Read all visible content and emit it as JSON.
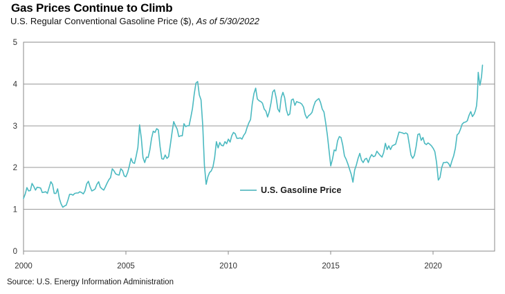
{
  "header": {
    "title": "Gas Prices Continue to Climb",
    "subtitle_main": "U.S. Regular Conventional Gasoline Price ($), ",
    "subtitle_asof": "As of 5/30/2022"
  },
  "legend": {
    "label": "U.S. Gasoline Price"
  },
  "footer": {
    "source": "Source: U.S. Energy Information Administration"
  },
  "colors": {
    "line": "#4ab9c0",
    "grid": "#999999",
    "border": "#8a8a8a",
    "axis_text": "#333333"
  },
  "chart_data": {
    "type": "line",
    "title": "Gas Prices Continue to Climb",
    "subtitle": "U.S. Regular Conventional Gasoline Price ($), As of 5/30/2022",
    "xlabel": "",
    "ylabel": "",
    "xlim": [
      2000,
      2023
    ],
    "ylim": [
      0,
      5
    ],
    "yticks": [
      0,
      1,
      2,
      3,
      4,
      5
    ],
    "xticks": [
      2000,
      2005,
      2010,
      2015,
      2020
    ],
    "grid": "horizontal",
    "legend_position": "inside-center",
    "source": "U.S. Energy Information Administration",
    "series": [
      {
        "name": "U.S. Gasoline Price",
        "start_year": 2000,
        "monthly_values": [
          [
            1.26,
            1.37,
            1.52,
            1.44,
            1.45,
            1.62,
            1.55,
            1.46,
            1.53,
            1.52,
            1.51,
            1.4
          ],
          [
            1.41,
            1.42,
            1.38,
            1.52,
            1.66,
            1.6,
            1.38,
            1.38,
            1.49,
            1.26,
            1.13,
            1.05
          ],
          [
            1.08,
            1.1,
            1.22,
            1.36,
            1.36,
            1.34,
            1.38,
            1.39,
            1.39,
            1.42,
            1.4,
            1.37
          ],
          [
            1.44,
            1.61,
            1.67,
            1.54,
            1.44,
            1.46,
            1.49,
            1.6,
            1.66,
            1.53,
            1.49,
            1.46
          ],
          [
            1.54,
            1.63,
            1.71,
            1.76,
            1.97,
            1.92,
            1.85,
            1.83,
            1.82,
            1.97,
            1.93,
            1.8
          ],
          [
            1.78,
            1.88,
            2.04,
            2.22,
            2.12,
            2.1,
            2.27,
            2.48,
            3.02,
            2.7,
            2.24,
            2.12
          ],
          [
            2.25,
            2.24,
            2.42,
            2.7,
            2.87,
            2.84,
            2.93,
            2.9,
            2.5,
            2.21,
            2.2,
            2.3
          ],
          [
            2.22,
            2.26,
            2.54,
            2.84,
            3.1,
            3.0,
            2.92,
            2.74,
            2.76,
            2.76,
            3.05,
            2.98
          ],
          [
            3.0,
            3.0,
            3.2,
            3.42,
            3.75,
            4.02,
            4.06,
            3.74,
            3.62,
            3.0,
            2.05,
            1.6
          ],
          [
            1.78,
            1.88,
            1.92,
            2.02,
            2.24,
            2.62,
            2.47,
            2.6,
            2.53,
            2.52,
            2.62,
            2.57
          ],
          [
            2.68,
            2.61,
            2.76,
            2.84,
            2.81,
            2.7,
            2.7,
            2.71,
            2.68,
            2.77,
            2.83,
            2.96
          ],
          [
            3.07,
            3.15,
            3.52,
            3.77,
            3.9,
            3.64,
            3.6,
            3.58,
            3.54,
            3.4,
            3.35,
            3.21
          ],
          [
            3.34,
            3.55,
            3.81,
            3.86,
            3.67,
            3.4,
            3.33,
            3.68,
            3.8,
            3.67,
            3.38,
            3.25
          ],
          [
            3.28,
            3.62,
            3.64,
            3.49,
            3.58,
            3.56,
            3.55,
            3.52,
            3.45,
            3.27,
            3.18,
            3.24
          ],
          [
            3.27,
            3.32,
            3.47,
            3.58,
            3.62,
            3.65,
            3.56,
            3.4,
            3.33,
            3.08,
            2.78,
            2.4
          ],
          [
            2.04,
            2.2,
            2.42,
            2.4,
            2.64,
            2.74,
            2.72,
            2.54,
            2.28,
            2.2,
            2.09,
            1.96
          ],
          [
            1.84,
            1.65,
            1.94,
            2.06,
            2.22,
            2.34,
            2.18,
            2.12,
            2.2,
            2.22,
            2.12,
            2.24
          ],
          [
            2.31,
            2.26,
            2.28,
            2.39,
            2.34,
            2.29,
            2.25,
            2.36,
            2.58,
            2.43,
            2.52,
            2.43
          ],
          [
            2.52,
            2.54,
            2.56,
            2.71,
            2.85,
            2.84,
            2.83,
            2.81,
            2.83,
            2.8,
            2.56,
            2.3
          ],
          [
            2.22,
            2.29,
            2.5,
            2.79,
            2.81,
            2.65,
            2.72,
            2.58,
            2.55,
            2.59,
            2.56,
            2.52
          ],
          [
            2.46,
            2.38,
            2.12,
            1.7,
            1.76,
            2.0,
            2.12,
            2.12,
            2.13,
            2.1,
            2.02,
            2.16
          ],
          [
            2.28,
            2.46,
            2.78,
            2.82,
            2.92,
            3.04,
            3.08,
            3.09,
            3.12,
            3.25,
            3.34,
            3.22
          ]
        ],
        "extra_points": [
          [
            2022.0,
            3.28
          ],
          [
            2022.06,
            3.36
          ],
          [
            2022.12,
            3.48
          ],
          [
            2022.16,
            3.72
          ],
          [
            2022.2,
            4.28
          ],
          [
            2022.24,
            4.12
          ],
          [
            2022.28,
            3.97
          ],
          [
            2022.32,
            4.06
          ],
          [
            2022.36,
            4.18
          ],
          [
            2022.41,
            4.45
          ]
        ]
      }
    ]
  }
}
